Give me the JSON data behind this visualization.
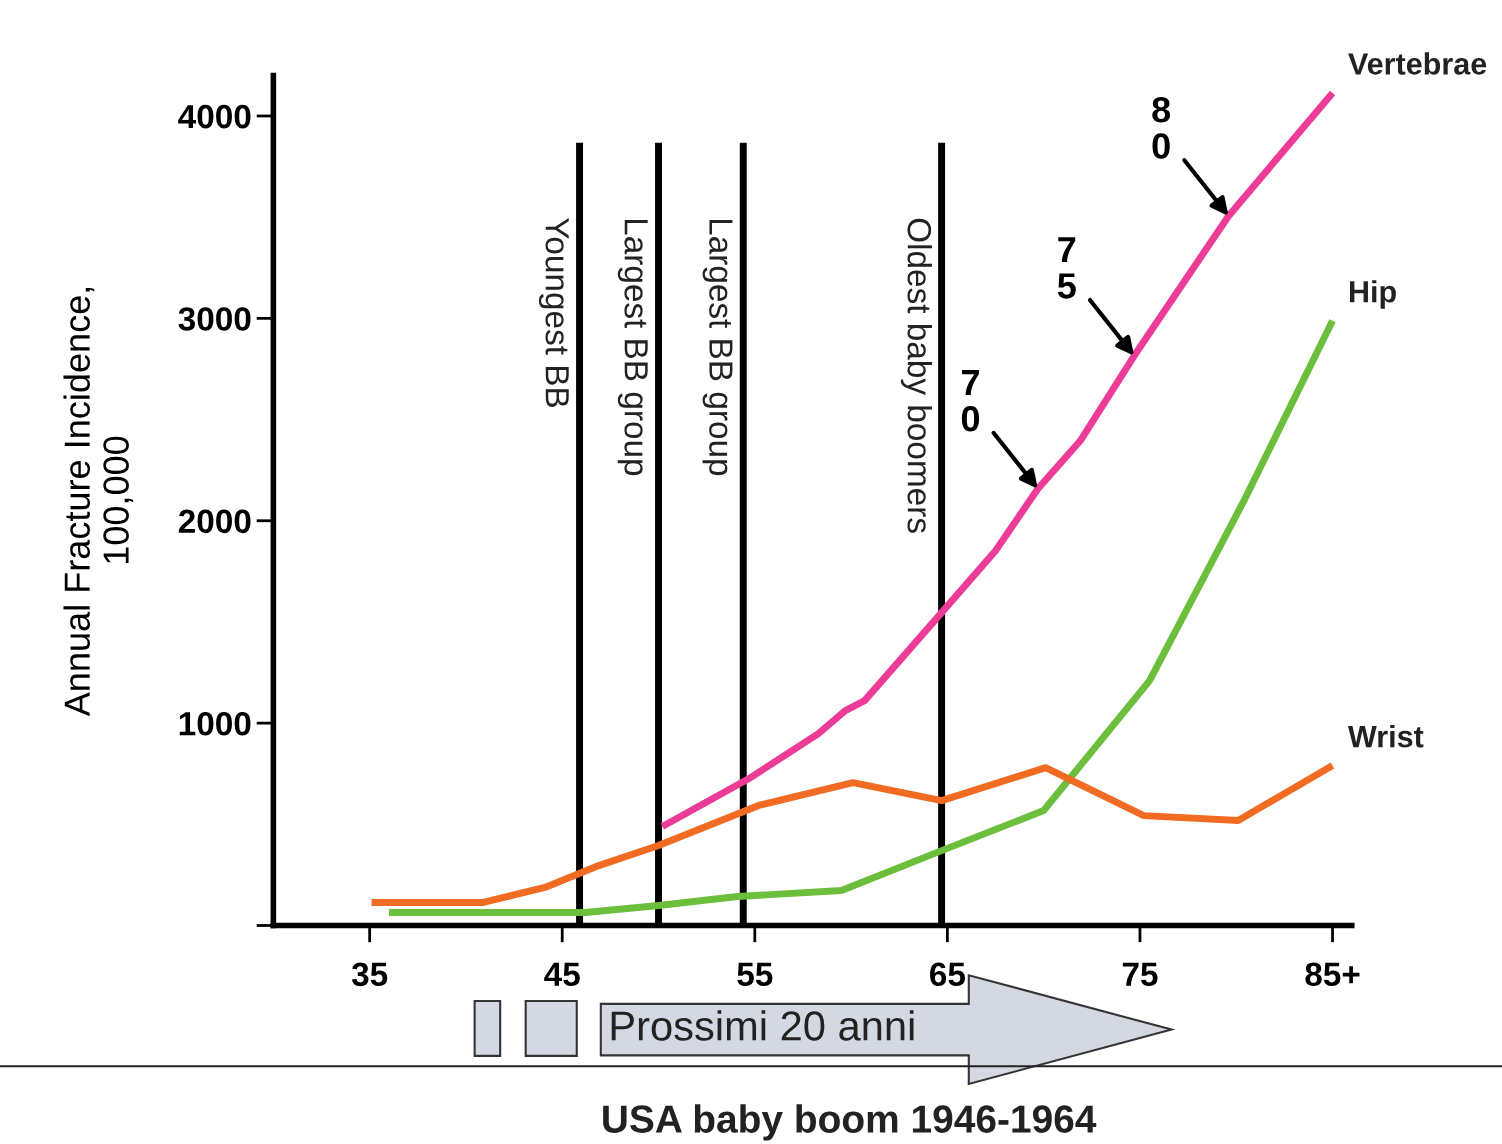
{
  "chart_data": {
    "type": "line",
    "ylabel": "Annual Fracture Incidence,\n100,000",
    "xlim": [
      30,
      86
    ],
    "ylim": [
      0,
      4200
    ],
    "xticks": [
      35,
      45,
      55,
      65,
      75,
      {
        "value": 85,
        "label": "85+"
      }
    ],
    "yticks": [
      {
        "value": 0,
        "label": null
      },
      1000,
      2000,
      3000,
      4000
    ],
    "grid": false,
    "legend": false,
    "marker": "none",
    "line_style": "solid",
    "series": [
      {
        "name": "Vertebrae",
        "color": "#ec3c98",
        "x": [
          50.2,
          54.7,
          58.3,
          59.7,
          60.7,
          64.7,
          67.5,
          69.7,
          71.9,
          74.7,
          79.6,
          85
        ],
        "values": [
          489,
          726,
          948,
          1062,
          1111,
          1546,
          1852,
          2158,
          2395,
          2815,
          3506,
          4114
        ]
      },
      {
        "name": "Hip",
        "color": "#6cbf3c",
        "x": [
          36.0,
          46.2,
          50.0,
          54.1,
          59.5,
          64.7,
          70.0,
          75.5,
          80.4,
          85
        ],
        "values": [
          64,
          64,
          99,
          143,
          173,
          370,
          568,
          1210,
          2099,
          2988
        ]
      },
      {
        "name": "Wrist",
        "color": "#f26b22",
        "x": [
          35.1,
          40.9,
          44.1,
          46.9,
          50.0,
          55.2,
          60.1,
          64.7,
          70.1,
          75.2,
          80.1,
          85
        ],
        "values": [
          114,
          114,
          188,
          296,
          395,
          593,
          706,
          617,
          780,
          543,
          519,
          790
        ]
      }
    ],
    "ref_lines": [
      {
        "axis": "x",
        "value": 45.9,
        "label": "Youngest BB",
        "color": "#000000"
      },
      {
        "axis": "x",
        "value": 50.0,
        "label": "Largest BB group",
        "color": "#000000"
      },
      {
        "axis": "x",
        "value": 54.4,
        "label": "Largest BB group",
        "color": "#000000"
      },
      {
        "axis": "x",
        "value": 64.7,
        "label": "Oldest baby boomers",
        "color": "#000000"
      }
    ],
    "annotations": [
      {
        "text": "7\n0",
        "x": 69.7,
        "y": 2158
      },
      {
        "text": "7\n5",
        "x": 74.7,
        "y": 2815
      },
      {
        "text": "8\n0",
        "x": 79.6,
        "y": 3506
      },
      "Prossimi 20 anni",
      "USA baby boom 1946-1964"
    ]
  }
}
